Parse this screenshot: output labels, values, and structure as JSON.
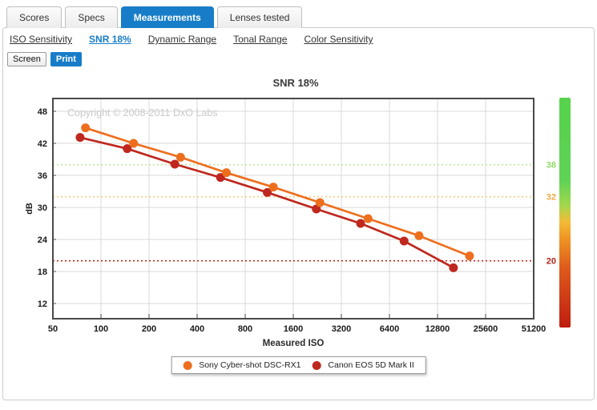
{
  "tabs": [
    {
      "label": "Scores",
      "active": false
    },
    {
      "label": "Specs",
      "active": false
    },
    {
      "label": "Measurements",
      "active": true
    },
    {
      "label": "Lenses tested",
      "active": false
    }
  ],
  "subnav": [
    {
      "label": "ISO Sensitivity",
      "active": false
    },
    {
      "label": "SNR 18%",
      "active": true
    },
    {
      "label": "Dynamic Range",
      "active": false
    },
    {
      "label": "Tonal Range",
      "active": false
    },
    {
      "label": "Color Sensitivity",
      "active": false
    }
  ],
  "view_toggle": {
    "screen_label": "Screen",
    "print_label": "Print"
  },
  "colors": {
    "accent_blue": "#187dc8",
    "sony_orange": "#ED6F1E",
    "canon_red": "#BE281E"
  },
  "chart_data": {
    "type": "line",
    "title": "SNR 18%",
    "xlabel": "Measured ISO",
    "ylabel": "dB",
    "x_scale": "log2",
    "x_ticks": [
      50,
      100,
      200,
      400,
      800,
      1600,
      3200,
      6400,
      12800,
      25600,
      51200
    ],
    "y_ticks": [
      12,
      18,
      24,
      30,
      36,
      42,
      48
    ],
    "ylim": [
      9.15,
      50.4
    ],
    "grid": true,
    "legend_position": "bottom",
    "watermark": "Copyright © 2008-2011 DxO Labs",
    "thresholds": [
      {
        "value": 38,
        "label": "38",
        "line_color": "#bce99b",
        "label_color": "#8fdb65"
      },
      {
        "value": 32,
        "label": "32",
        "line_color": "#f8cd84",
        "label_color": "#efa843"
      },
      {
        "value": 20,
        "label": "20",
        "line_color": "#c6271c",
        "label_color": "#b5241a"
      }
    ],
    "series": [
      {
        "name": "Sony Cyber-shot DSC-RX1",
        "color": "#ED6F1E",
        "x": [
          80,
          160,
          315,
          610,
          1200,
          2350,
          4700,
          9800,
          20300
        ],
        "y": [
          44.9,
          42.0,
          39.4,
          36.5,
          33.8,
          30.9,
          27.9,
          24.7,
          20.9
        ]
      },
      {
        "name": "Canon EOS 5D Mark II",
        "color": "#BE281E",
        "x": [
          74,
          146,
          290,
          560,
          1100,
          2230,
          4220,
          7900,
          16100
        ],
        "y": [
          43.1,
          41.0,
          38.1,
          35.6,
          32.8,
          29.7,
          27.0,
          23.7,
          18.7
        ]
      }
    ],
    "gradient_bar": {
      "stops": [
        [
          0,
          "#56d24b"
        ],
        [
          36,
          "#5fd356"
        ],
        [
          47,
          "#a4d74d"
        ],
        [
          54,
          "#f4bb38"
        ],
        [
          61,
          "#f09624"
        ],
        [
          74,
          "#de5b1c"
        ],
        [
          100,
          "#bf1d10"
        ]
      ]
    }
  }
}
